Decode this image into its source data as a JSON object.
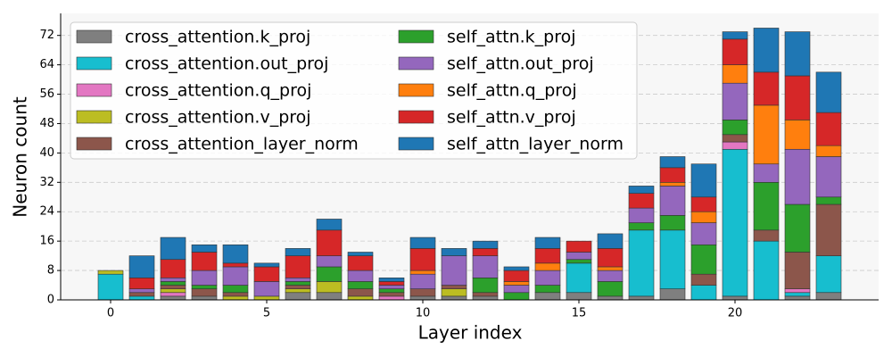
{
  "chart_data": {
    "type": "stacked_bar",
    "x_label": "Layer index",
    "y_label": "Neuron count",
    "x": [
      0,
      1,
      2,
      3,
      4,
      5,
      6,
      7,
      8,
      9,
      10,
      11,
      12,
      13,
      14,
      15,
      16,
      17,
      18,
      19,
      20,
      21,
      22,
      23
    ],
    "xlim": [
      -1.6,
      24.6
    ],
    "xticks": [
      0,
      5,
      10,
      15,
      20
    ],
    "ylim": [
      0,
      78
    ],
    "yticks": [
      0,
      8,
      16,
      24,
      32,
      40,
      48,
      56,
      64,
      72
    ],
    "grid": true,
    "legend": "upper left",
    "series": [
      {
        "name": "cross_attention.k_proj",
        "color": "#7f7f7f",
        "values": [
          0,
          0,
          1,
          1,
          0,
          0,
          2,
          2,
          0,
          0,
          1,
          1,
          1,
          0,
          2,
          2,
          1,
          1,
          3,
          0,
          1,
          0,
          1,
          2
        ]
      },
      {
        "name": "cross_attention.out_proj",
        "color": "#17becf",
        "values": [
          7,
          1,
          0,
          0,
          0,
          0,
          0,
          0,
          0,
          0,
          0,
          0,
          0,
          0,
          0,
          8,
          0,
          18,
          16,
          4,
          40,
          16,
          1,
          10
        ]
      },
      {
        "name": "cross_attention.q_proj",
        "color": "#e377c2",
        "values": [
          0,
          0,
          1,
          0,
          0,
          0,
          0,
          0,
          0,
          1,
          0,
          0,
          0,
          0,
          0,
          0,
          0,
          0,
          0,
          0,
          2,
          0,
          1,
          0
        ]
      },
      {
        "name": "cross_attention.v_proj",
        "color": "#bcbd22",
        "values": [
          1,
          0,
          1,
          0,
          1,
          1,
          1,
          3,
          1,
          0,
          0,
          2,
          0,
          0,
          0,
          0,
          0,
          0,
          0,
          0,
          0,
          0,
          0,
          0
        ]
      },
      {
        "name": "cross_attention_layer_norm",
        "color": "#8c564b",
        "values": [
          0,
          1,
          1,
          2,
          1,
          0,
          1,
          0,
          2,
          1,
          2,
          1,
          1,
          0,
          0,
          0,
          0,
          0,
          0,
          3,
          2,
          3,
          10,
          14
        ]
      },
      {
        "name": "self_attn.k_proj",
        "color": "#2ca02c",
        "values": [
          0,
          0,
          1,
          1,
          2,
          0,
          1,
          4,
          2,
          1,
          0,
          0,
          4,
          2,
          2,
          1,
          4,
          2,
          4,
          8,
          4,
          13,
          13,
          2
        ]
      },
      {
        "name": "self_attn.out_proj",
        "color": "#9467bd",
        "values": [
          0,
          1,
          1,
          4,
          5,
          4,
          1,
          3,
          3,
          1,
          4,
          8,
          6,
          2,
          4,
          2,
          3,
          4,
          8,
          6,
          10,
          5,
          15,
          11
        ]
      },
      {
        "name": "self_attn.q_proj",
        "color": "#ff7f0e",
        "values": [
          0,
          0,
          0,
          0,
          0,
          0,
          0,
          0,
          0,
          0,
          1,
          0,
          0,
          1,
          2,
          0,
          1,
          0,
          1,
          3,
          5,
          16,
          8,
          3
        ]
      },
      {
        "name": "self_attn.v_proj",
        "color": "#d62728",
        "values": [
          0,
          3,
          5,
          5,
          1,
          4,
          6,
          7,
          4,
          1,
          6,
          0,
          2,
          3,
          4,
          3,
          5,
          4,
          4,
          4,
          7,
          9,
          12,
          9
        ]
      },
      {
        "name": "self_attn_layer_norm",
        "color": "#1f77b4",
        "values": [
          0,
          6,
          6,
          2,
          5,
          1,
          2,
          3,
          1,
          1,
          3,
          2,
          2,
          1,
          3,
          0,
          4,
          2,
          3,
          9,
          2,
          12,
          12,
          11
        ]
      }
    ]
  }
}
